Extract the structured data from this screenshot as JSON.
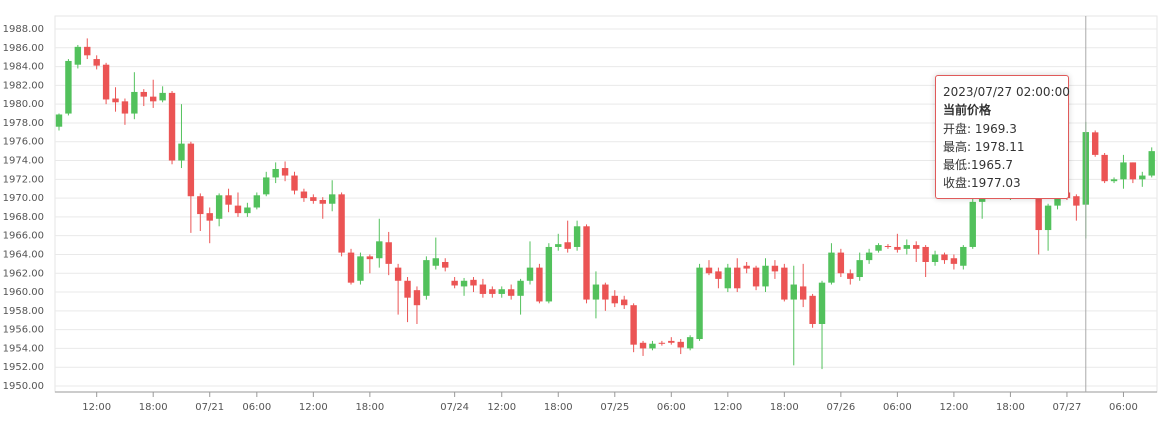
{
  "chart_data": {
    "type": "candlestick",
    "up_color": "#52c15c",
    "down_color": "#eb5454",
    "ylim": [
      1950,
      1988
    ],
    "yticks": [
      {
        "value": 1950,
        "label": "1950.00"
      },
      {
        "value": 1952,
        "label": "1952.00"
      },
      {
        "value": 1954,
        "label": "1954.00"
      },
      {
        "value": 1956,
        "label": "1956.00"
      },
      {
        "value": 1958,
        "label": "1958.00"
      },
      {
        "value": 1960,
        "label": "1960.00"
      },
      {
        "value": 1962,
        "label": "1962.00"
      },
      {
        "value": 1964,
        "label": "1964.00"
      },
      {
        "value": 1966,
        "label": "1966.00"
      },
      {
        "value": 1968,
        "label": "1968.00"
      },
      {
        "value": 1970,
        "label": "1970.00"
      },
      {
        "value": 1972,
        "label": "1972.00"
      },
      {
        "value": 1974,
        "label": "1974.00"
      },
      {
        "value": 1976,
        "label": "1976.00"
      },
      {
        "value": 1978,
        "label": "1978.00"
      },
      {
        "value": 1980,
        "label": "1980.00"
      },
      {
        "value": 1982,
        "label": "1982.00"
      },
      {
        "value": 1984,
        "label": "1984.00"
      },
      {
        "value": 1986,
        "label": "1986.00"
      },
      {
        "value": 1988,
        "label": "1988.00"
      }
    ],
    "grid": true,
    "categories": [
      null,
      null,
      null,
      null,
      "12:00",
      null,
      null,
      null,
      null,
      null,
      "18:00",
      null,
      null,
      null,
      null,
      null,
      "07/21",
      null,
      null,
      null,
      null,
      "06:00",
      null,
      null,
      null,
      null,
      null,
      "12:00",
      null,
      null,
      null,
      null,
      null,
      "18:00",
      null,
      null,
      null,
      null,
      null,
      null,
      null,
      null,
      "07/24",
      null,
      null,
      null,
      null,
      "12:00",
      null,
      null,
      null,
      null,
      null,
      "18:00",
      null,
      null,
      null,
      null,
      null,
      "07/25",
      null,
      null,
      null,
      null,
      null,
      "06:00",
      null,
      null,
      null,
      null,
      null,
      "12:00",
      null,
      null,
      null,
      null,
      null,
      "18:00",
      null,
      null,
      null,
      null,
      null,
      "07/26",
      null,
      null,
      null,
      null,
      null,
      "06:00",
      null,
      null,
      null,
      null,
      null,
      "12:00",
      null,
      null,
      null,
      null,
      null,
      "18:00",
      null,
      null,
      null,
      null,
      null,
      "07/27",
      null,
      null,
      null,
      null,
      null,
      "06:00",
      null,
      null,
      null
    ],
    "series": [
      {
        "name": "当前价格",
        "values": [
          [
            1977.6,
            1978.9,
            1977.2,
            1979
          ],
          [
            1979,
            1984.6,
            1978.8,
            1984.8
          ],
          [
            1984.2,
            1986.1,
            1983.8,
            1986.3
          ],
          [
            1986.1,
            1985.2,
            1984.8,
            1987
          ],
          [
            1984.8,
            1984.1,
            1983.7,
            1985.2
          ],
          [
            1984.2,
            1980.5,
            1980,
            1984.4
          ],
          [
            1980.6,
            1980.2,
            1979.2,
            1981.8
          ],
          [
            1980.3,
            1979,
            1977.8,
            1980.6
          ],
          [
            1979,
            1981.3,
            1978.4,
            1983.4
          ],
          [
            1981.3,
            1980.8,
            1979.8,
            1981.6
          ],
          [
            1980.8,
            1980.3,
            1979.6,
            1982.6
          ],
          [
            1980.4,
            1981.2,
            1980.2,
            1981.9
          ],
          [
            1981.2,
            1974,
            1973.6,
            1981.4
          ],
          [
            1974,
            1975.8,
            1973.2,
            1980
          ],
          [
            1975.8,
            1970.2,
            1966.3,
            1976
          ],
          [
            1970.2,
            1968.3,
            1966.5,
            1970.5
          ],
          [
            1968.4,
            1967.6,
            1965.2,
            1969
          ],
          [
            1967.8,
            1970.3,
            1967,
            1970.5
          ],
          [
            1970.3,
            1969.3,
            1968.5,
            1971
          ],
          [
            1969.2,
            1968.4,
            1968,
            1970.6
          ],
          [
            1968.4,
            1969,
            1968,
            1969.5
          ],
          [
            1969,
            1970.3,
            1968.8,
            1970.6
          ],
          [
            1970.4,
            1972.2,
            1970.2,
            1972.8
          ],
          [
            1972.2,
            1973.1,
            1971.6,
            1973.8
          ],
          [
            1973.2,
            1972.4,
            1971.8,
            1973.9
          ],
          [
            1972.4,
            1970.8,
            1970.4,
            1972.8
          ],
          [
            1970.7,
            1970,
            1969.6,
            1971
          ],
          [
            1970.1,
            1969.7,
            1969.4,
            1970.4
          ],
          [
            1969.8,
            1969.4,
            1967.8,
            1970.1
          ],
          [
            1969.4,
            1970.4,
            1968.6,
            1971.9
          ],
          [
            1970.4,
            1964.2,
            1963.8,
            1970.6
          ],
          [
            1964.2,
            1961,
            1960.8,
            1964.6
          ],
          [
            1961.2,
            1963.8,
            1960.8,
            1964.2
          ],
          [
            1963.8,
            1963.5,
            1962,
            1964
          ],
          [
            1963.6,
            1965.4,
            1962.6,
            1967.8
          ],
          [
            1965.3,
            1963,
            1961.8,
            1966.4
          ],
          [
            1962.6,
            1961.2,
            1957.6,
            1963
          ],
          [
            1961.2,
            1959.4,
            1956.8,
            1961.6
          ],
          [
            1960.2,
            1958.6,
            1956.6,
            1960.6
          ],
          [
            1959.6,
            1963.4,
            1959.2,
            1963.8
          ],
          [
            1962.8,
            1963.6,
            1962.4,
            1965.8
          ],
          [
            1963.2,
            1962.6,
            1962.2,
            1963.6
          ],
          [
            1961.2,
            1960.7,
            1960.4,
            1961.6
          ],
          [
            1960.6,
            1961.2,
            1959.6,
            1961.5
          ],
          [
            1961.3,
            1960.7,
            1960,
            1961.6
          ],
          [
            1960.8,
            1959.8,
            1959.4,
            1961.4
          ],
          [
            1960.3,
            1959.8,
            1959.4,
            1960.6
          ],
          [
            1959.8,
            1960.3,
            1959.4,
            1960.6
          ],
          [
            1960.3,
            1959.6,
            1959.2,
            1960.8
          ],
          [
            1959.6,
            1961.2,
            1957.6,
            1961.4
          ],
          [
            1961.2,
            1962.6,
            1960.8,
            1965.4
          ],
          [
            1962.6,
            1959,
            1958.8,
            1963
          ],
          [
            1959,
            1964.8,
            1958.8,
            1965.2
          ],
          [
            1964.8,
            1965.1,
            1964.4,
            1966.2
          ],
          [
            1965.3,
            1964.6,
            1964.2,
            1967.6
          ],
          [
            1964.8,
            1967,
            1964.4,
            1967.6
          ],
          [
            1967,
            1959.2,
            1958.8,
            1967.2
          ],
          [
            1959.2,
            1960.8,
            1957.2,
            1962.2
          ],
          [
            1960.8,
            1959.2,
            1958,
            1961
          ],
          [
            1959.6,
            1958.8,
            1958.4,
            1960.2
          ],
          [
            1959.2,
            1958.6,
            1958.2,
            1959.6
          ],
          [
            1958.6,
            1954.4,
            1953.6,
            1958.8
          ],
          [
            1954.6,
            1954,
            1953.2,
            1954.8
          ],
          [
            1954,
            1954.5,
            1953.8,
            1954.8
          ],
          [
            1954.6,
            1954.5,
            1954.3,
            1954.8
          ],
          [
            1954.8,
            1954.6,
            1954.4,
            1955.2
          ],
          [
            1954.7,
            1954.1,
            1953.4,
            1955
          ],
          [
            1954,
            1955.2,
            1953.8,
            1955.4
          ],
          [
            1955,
            1962.6,
            1954.8,
            1963
          ],
          [
            1962.6,
            1962,
            1961.8,
            1963.4
          ],
          [
            1962.2,
            1961.4,
            1960.4,
            1962.6
          ],
          [
            1960.4,
            1962.6,
            1960,
            1963
          ],
          [
            1962.6,
            1960.4,
            1960,
            1963.6
          ],
          [
            1962.8,
            1962.5,
            1962,
            1963.2
          ],
          [
            1962.6,
            1960.6,
            1960.2,
            1962.8
          ],
          [
            1960.6,
            1962.8,
            1960,
            1963.6
          ],
          [
            1962.8,
            1962.2,
            1961.4,
            1963.4
          ],
          [
            1962.6,
            1959.2,
            1959,
            1963
          ],
          [
            1959.2,
            1960.8,
            1952.2,
            1962.8
          ],
          [
            1960.6,
            1959.2,
            1958.4,
            1963
          ],
          [
            1959.6,
            1956.6,
            1956.2,
            1959.8
          ],
          [
            1956.6,
            1961,
            1951.8,
            1961.2
          ],
          [
            1961,
            1964.2,
            1960.8,
            1965.2
          ],
          [
            1964.2,
            1962,
            1961.6,
            1964.6
          ],
          [
            1962,
            1961.4,
            1960.8,
            1962.4
          ],
          [
            1961.6,
            1963.4,
            1961.2,
            1964.2
          ],
          [
            1963.4,
            1964.2,
            1963,
            1964.6
          ],
          [
            1964.4,
            1965,
            1964.2,
            1965.2
          ],
          [
            1964.9,
            1964.8,
            1964.6,
            1965.1
          ],
          [
            1964.8,
            1964.5,
            1964.2,
            1966.2
          ],
          [
            1964.6,
            1965,
            1964,
            1965.6
          ],
          [
            1965,
            1964.6,
            1963.2,
            1965.4
          ],
          [
            1964.8,
            1963.2,
            1961.6,
            1965
          ],
          [
            1963.2,
            1964,
            1962.8,
            1964.4
          ],
          [
            1964,
            1963.4,
            1963,
            1964.2
          ],
          [
            1963.6,
            1963,
            1962.4,
            1964
          ],
          [
            1962.8,
            1964.8,
            1962.4,
            1965
          ],
          [
            1964.8,
            1969.6,
            1964.6,
            1970
          ],
          [
            1969.6,
            1970.6,
            1967.8,
            1972
          ],
          [
            1970.6,
            1972,
            1970,
            1973
          ],
          [
            1972,
            1971,
            1970.2,
            1972.6
          ],
          [
            1971,
            1972.2,
            1969.8,
            1972.8
          ],
          [
            1972.2,
            1971.2,
            1970.4,
            1972.6
          ],
          [
            1971.2,
            1972.4,
            1970.8,
            1973
          ],
          [
            1970,
            1966.6,
            1964,
            1970.4
          ],
          [
            1966.6,
            1969.2,
            1964.4,
            1969.4
          ],
          [
            1969.2,
            1972,
            1968.8,
            1972.8
          ],
          [
            1970.6,
            1970,
            1969.8,
            1971
          ],
          [
            1970.2,
            1969.2,
            1967.6,
            1970.4
          ],
          [
            1969.3,
            1977.03,
            1965.7,
            1978.11
          ],
          [
            1977,
            1974.6,
            1974.4,
            1977.2
          ],
          [
            1974.6,
            1971.8,
            1971.6,
            1974.8
          ],
          [
            1971.8,
            1972,
            1971.6,
            1972.2
          ],
          [
            1972,
            1973.8,
            1971,
            1974.6
          ],
          [
            1973.8,
            1972,
            1971.6,
            1973.8
          ],
          [
            1972,
            1972.4,
            1971.2,
            1972.8
          ],
          [
            1972.4,
            1975,
            1972.2,
            1975.4
          ]
        ]
      }
    ],
    "tooltip": {
      "title": "2023/07/27 02:00:00",
      "labels": [
        "开盘: ",
        "最高: ",
        "最低:",
        "收盘:"
      ]
    }
  }
}
